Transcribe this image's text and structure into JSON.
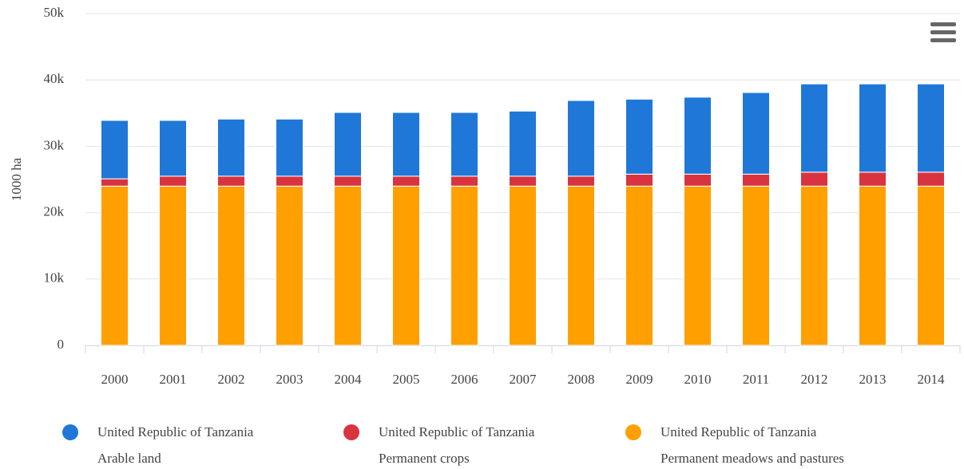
{
  "chart_data": {
    "type": "stacked-bar",
    "y_label": "1000 ha",
    "categories": [
      "2000",
      "2001",
      "2002",
      "2003",
      "2004",
      "2005",
      "2006",
      "2007",
      "2008",
      "2009",
      "2010",
      "2011",
      "2012",
      "2013",
      "2014"
    ],
    "series": [
      {
        "group": "United Republic of Tanzania",
        "name": "Arable land",
        "color": "#1f78d8",
        "values": [
          8800,
          8400,
          8600,
          8600,
          9600,
          9600,
          9600,
          9800,
          11400,
          11300,
          11600,
          12300,
          13300,
          13300,
          13300
        ]
      },
      {
        "group": "United Republic of Tanzania",
        "name": "Permanent crops",
        "color": "#d9333f",
        "values": [
          1100,
          1500,
          1500,
          1500,
          1500,
          1500,
          1500,
          1500,
          1500,
          1800,
          1800,
          1800,
          2100,
          2100,
          2100
        ]
      },
      {
        "group": "United Republic of Tanzania",
        "name": "Permanent meadows and pastures",
        "color": "#ffa000",
        "values": [
          24000,
          24000,
          24000,
          24000,
          24000,
          24000,
          24000,
          24000,
          24000,
          24000,
          24000,
          24000,
          24000,
          24000,
          24000
        ]
      }
    ],
    "ylim": [
      0,
      50000
    ],
    "yticks": [
      0,
      {
        "value": 10000,
        "label": "10k"
      },
      {
        "value": 20000,
        "label": "20k"
      },
      {
        "value": 30000,
        "label": "30k"
      },
      {
        "value": 40000,
        "label": "40k"
      },
      {
        "value": 50000,
        "label": "50k"
      }
    ],
    "grid": true
  }
}
